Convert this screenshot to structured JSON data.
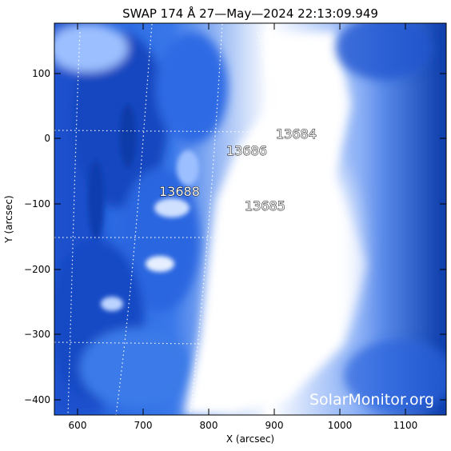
{
  "title": "SWAP 174 Å 27—May—2024 22:13:09.949",
  "x_axis": {
    "label": "X (arcsec)",
    "ticks": [
      "600",
      "700",
      "800",
      "900",
      "1000",
      "1100"
    ]
  },
  "y_axis": {
    "label": "Y (arcsec)",
    "ticks": [
      "100",
      "0",
      "−100",
      "−200",
      "−300",
      "−400"
    ]
  },
  "regions": [
    {
      "id": "13684",
      "label": "13684"
    },
    {
      "id": "13686",
      "label": "13686"
    },
    {
      "id": "13688",
      "label": "13688"
    },
    {
      "id": "13685",
      "label": "13685"
    }
  ],
  "watermark": "SolarMonitor.org",
  "colors": {
    "deep_blue": "#0a3fb0",
    "mid_blue": "#2a6ae0",
    "light_blue": "#8fb8ff",
    "saturated": "#ffffff",
    "grid": "#ffffff"
  }
}
